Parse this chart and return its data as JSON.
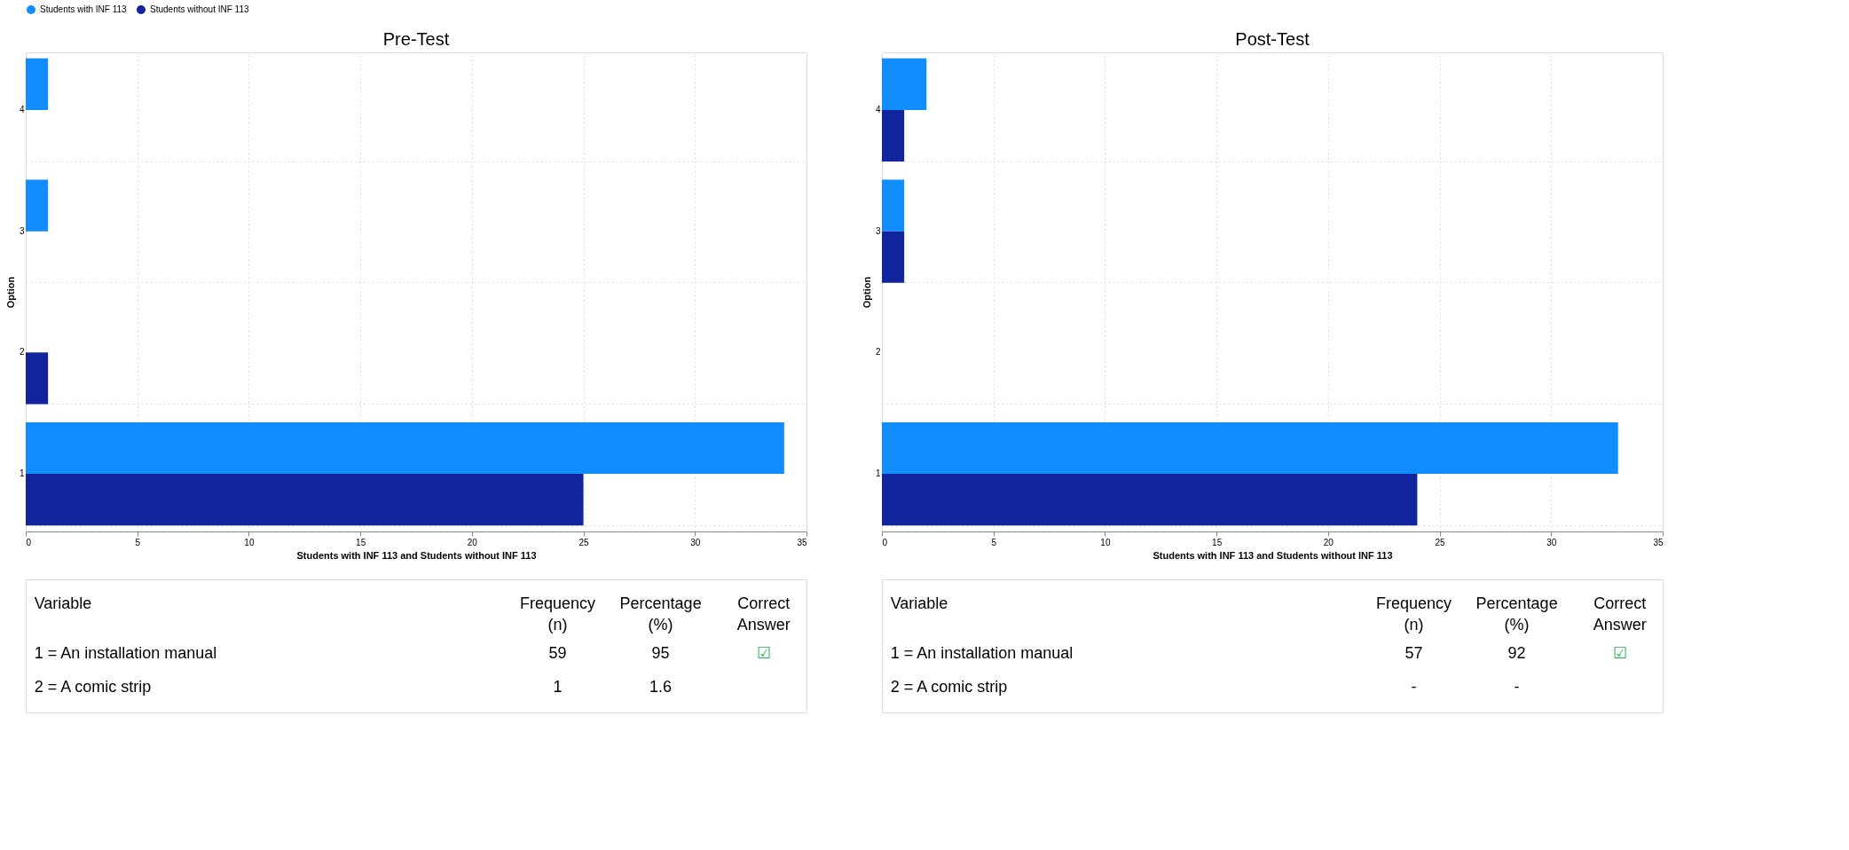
{
  "chart_data": [
    {
      "type": "bar",
      "orientation": "horizontal",
      "title": "Pre-Test",
      "xlabel": "Students with INF 113 and Students without INF 113",
      "ylabel": "Option",
      "categories": [
        "4",
        "3",
        "2",
        "1"
      ],
      "xlim": [
        0,
        35
      ],
      "xticks": [
        0,
        5,
        10,
        15,
        20,
        25,
        30,
        35
      ],
      "grid": true,
      "legend": "top left",
      "series": [
        {
          "name": "Students with INF 113",
          "color": "#118dff",
          "values": [
            1,
            1,
            null,
            34
          ]
        },
        {
          "name": "Students without INF 113",
          "color": "#12239e",
          "values": [
            null,
            null,
            1,
            25
          ]
        }
      ],
      "annotations": [
        "Variable",
        "Frequency (n)",
        "Percentage (%)",
        "Correct Answer",
        "1 = An installation manual",
        "59",
        "95",
        "☑",
        "2 = A comic strip",
        "1",
        "1.6"
      ]
    },
    {
      "type": "bar",
      "orientation": "horizontal",
      "title": "Post-Test",
      "xlabel": "Students with INF 113 and Students without INF 113",
      "ylabel": "Option",
      "categories": [
        "4",
        "3",
        "2",
        "1"
      ],
      "xlim": [
        0,
        35
      ],
      "xticks": [
        0,
        5,
        10,
        15,
        20,
        25,
        30,
        35
      ],
      "grid": true,
      "legend": "top left",
      "series": [
        {
          "name": "Students with INF 113",
          "color": "#118dff",
          "values": [
            2,
            1,
            null,
            33
          ]
        },
        {
          "name": "Students without INF 113",
          "color": "#12239e",
          "values": [
            1,
            1,
            null,
            24
          ]
        }
      ],
      "annotations": [
        "Variable",
        "Frequency (n)",
        "Percentage (%)",
        "Correct Answer",
        "1 = An installation manual",
        "57",
        "92",
        "☑",
        "2 = A comic strip",
        "-",
        "-"
      ]
    }
  ]
}
